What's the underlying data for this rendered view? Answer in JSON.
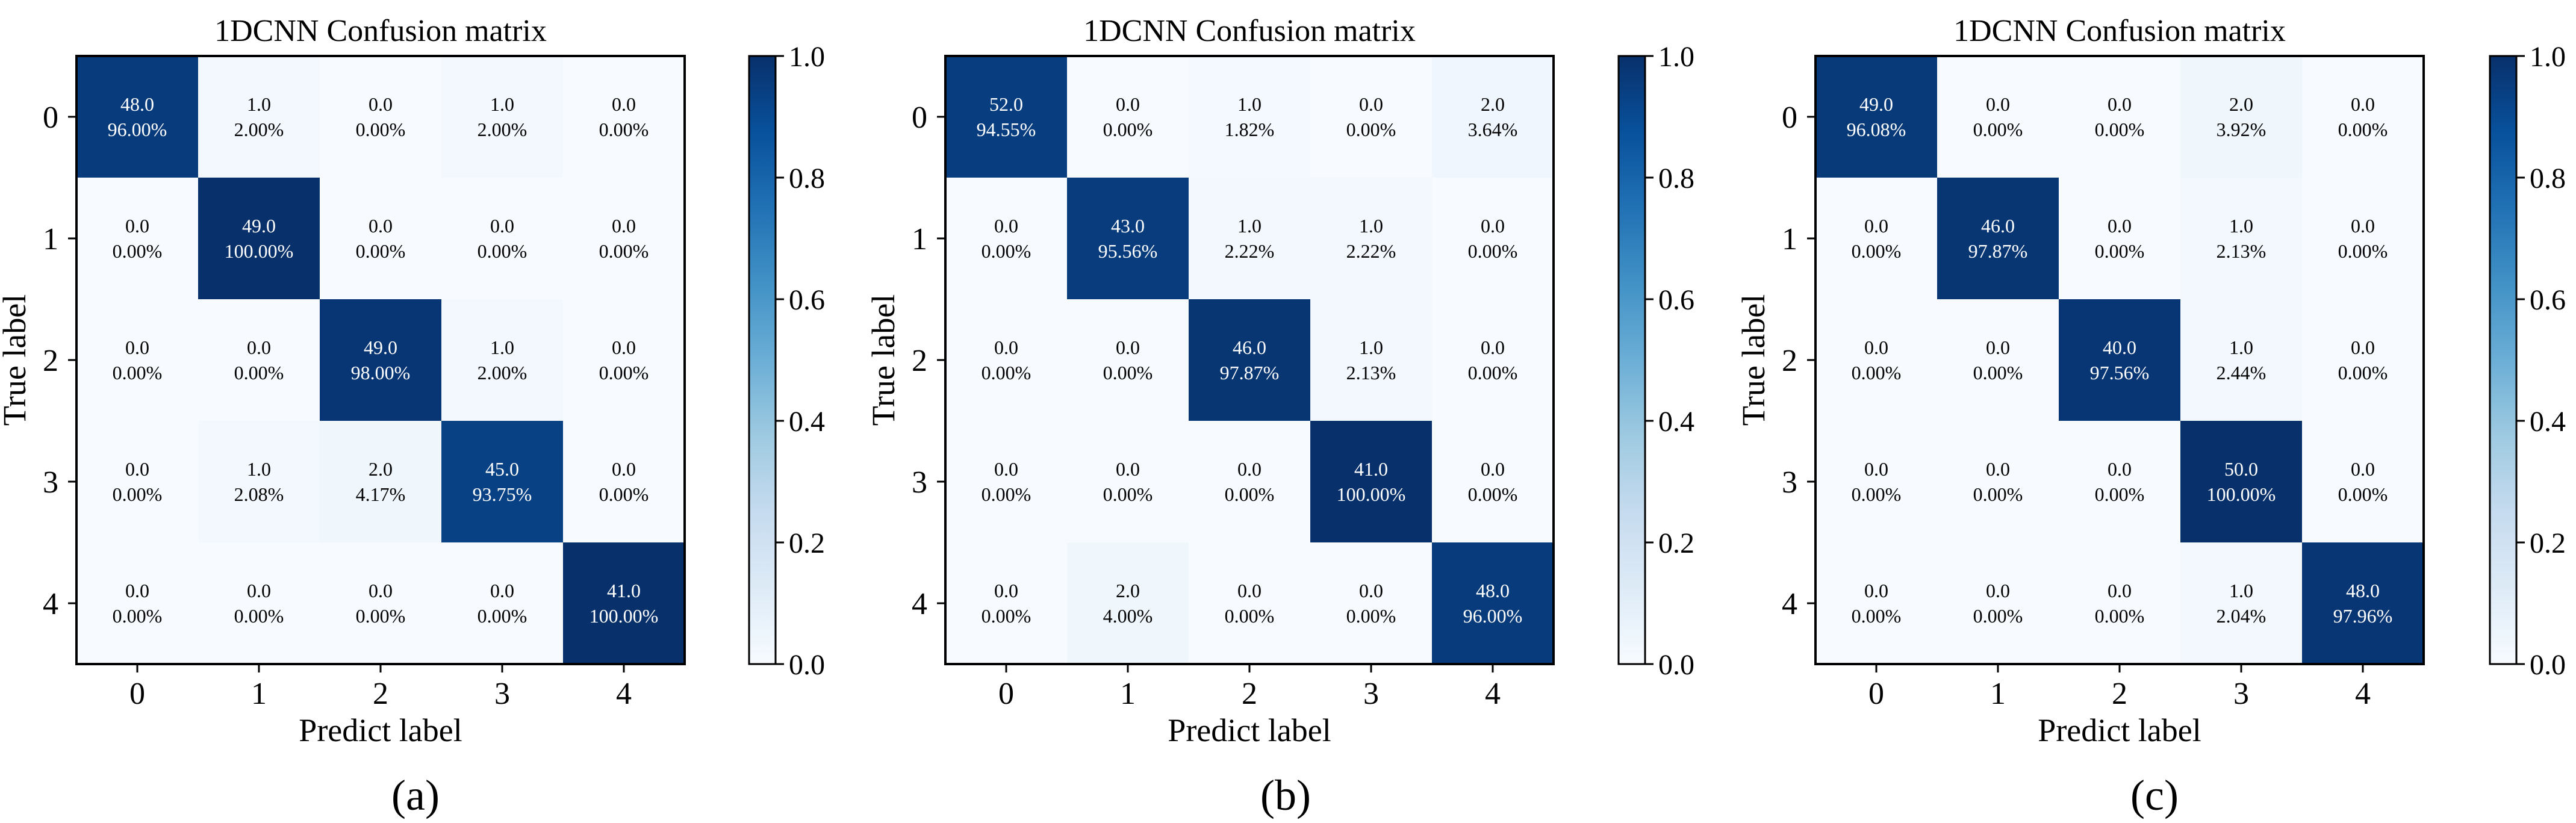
{
  "chart_data": [
    {
      "type": "heatmap",
      "panel_label": "(a)",
      "title": "1DCNN Confusion matrix",
      "xlabel": "Predict label",
      "ylabel": "True label",
      "x_ticks": [
        "0",
        "1",
        "2",
        "3",
        "4"
      ],
      "y_ticks": [
        "0",
        "1",
        "2",
        "3",
        "4"
      ],
      "counts": [
        [
          48.0,
          1.0,
          0.0,
          1.0,
          0.0
        ],
        [
          0.0,
          49.0,
          0.0,
          0.0,
          0.0
        ],
        [
          0.0,
          0.0,
          49.0,
          1.0,
          0.0
        ],
        [
          0.0,
          1.0,
          2.0,
          45.0,
          0.0
        ],
        [
          0.0,
          0.0,
          0.0,
          0.0,
          41.0
        ]
      ],
      "percents": [
        [
          "96.00%",
          "2.00%",
          "0.00%",
          "2.00%",
          "0.00%"
        ],
        [
          "0.00%",
          "100.00%",
          "0.00%",
          "0.00%",
          "0.00%"
        ],
        [
          "0.00%",
          "0.00%",
          "98.00%",
          "2.00%",
          "0.00%"
        ],
        [
          "0.00%",
          "2.08%",
          "4.17%",
          "93.75%",
          "0.00%"
        ],
        [
          "0.00%",
          "0.00%",
          "0.00%",
          "0.00%",
          "100.00%"
        ]
      ],
      "colorbar": {
        "min": 0.0,
        "max": 1.0,
        "ticks": [
          "0.0",
          "0.2",
          "0.4",
          "0.6",
          "0.8",
          "1.0"
        ],
        "colormap": "Blues"
      }
    },
    {
      "type": "heatmap",
      "panel_label": "(b)",
      "title": "1DCNN Confusion matrix",
      "xlabel": "Predict label",
      "ylabel": "True label",
      "x_ticks": [
        "0",
        "1",
        "2",
        "3",
        "4"
      ],
      "y_ticks": [
        "0",
        "1",
        "2",
        "3",
        "4"
      ],
      "counts": [
        [
          52.0,
          0.0,
          1.0,
          0.0,
          2.0
        ],
        [
          0.0,
          43.0,
          1.0,
          1.0,
          0.0
        ],
        [
          0.0,
          0.0,
          46.0,
          1.0,
          0.0
        ],
        [
          0.0,
          0.0,
          0.0,
          41.0,
          0.0
        ],
        [
          0.0,
          2.0,
          0.0,
          0.0,
          48.0
        ]
      ],
      "percents": [
        [
          "94.55%",
          "0.00%",
          "1.82%",
          "0.00%",
          "3.64%"
        ],
        [
          "0.00%",
          "95.56%",
          "2.22%",
          "2.22%",
          "0.00%"
        ],
        [
          "0.00%",
          "0.00%",
          "97.87%",
          "2.13%",
          "0.00%"
        ],
        [
          "0.00%",
          "0.00%",
          "0.00%",
          "100.00%",
          "0.00%"
        ],
        [
          "0.00%",
          "4.00%",
          "0.00%",
          "0.00%",
          "96.00%"
        ]
      ],
      "colorbar": {
        "min": 0.0,
        "max": 1.0,
        "ticks": [
          "0.0",
          "0.2",
          "0.4",
          "0.6",
          "0.8",
          "1.0"
        ],
        "colormap": "Blues"
      }
    },
    {
      "type": "heatmap",
      "panel_label": "(c)",
      "title": "1DCNN Confusion matrix",
      "xlabel": "Predict label",
      "ylabel": "True label",
      "x_ticks": [
        "0",
        "1",
        "2",
        "3",
        "4"
      ],
      "y_ticks": [
        "0",
        "1",
        "2",
        "3",
        "4"
      ],
      "counts": [
        [
          49.0,
          0.0,
          0.0,
          2.0,
          0.0
        ],
        [
          0.0,
          46.0,
          0.0,
          1.0,
          0.0
        ],
        [
          0.0,
          0.0,
          40.0,
          1.0,
          0.0
        ],
        [
          0.0,
          0.0,
          0.0,
          50.0,
          0.0
        ],
        [
          0.0,
          0.0,
          0.0,
          1.0,
          48.0
        ]
      ],
      "percents": [
        [
          "96.08%",
          "0.00%",
          "0.00%",
          "3.92%",
          "0.00%"
        ],
        [
          "0.00%",
          "97.87%",
          "0.00%",
          "2.13%",
          "0.00%"
        ],
        [
          "0.00%",
          "0.00%",
          "97.56%",
          "2.44%",
          "0.00%"
        ],
        [
          "0.00%",
          "0.00%",
          "0.00%",
          "100.00%",
          "0.00%"
        ],
        [
          "0.00%",
          "0.00%",
          "0.00%",
          "2.04%",
          "97.96%"
        ]
      ],
      "colorbar": {
        "min": 0.0,
        "max": 1.0,
        "ticks": [
          "0.0",
          "0.2",
          "0.4",
          "0.6",
          "0.8",
          "1.0"
        ],
        "colormap": "Blues"
      }
    }
  ]
}
